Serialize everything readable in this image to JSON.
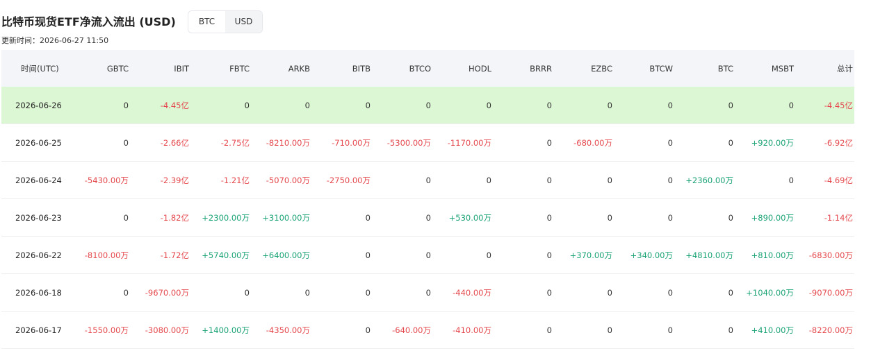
{
  "header": {
    "title": "比特币现货ETF净流入流出 (USD)",
    "toggle": [
      "BTC",
      "USD"
    ],
    "updated": "更新时间：2026-06-27 11:50"
  },
  "table": {
    "columns": [
      "时间(UTC)",
      "GBTC",
      "IBIT",
      "FBTC",
      "ARKB",
      "BITB",
      "BTCO",
      "HODL",
      "BRRR",
      "EZBC",
      "BTCW",
      "BTC",
      "MSBT",
      "总计"
    ],
    "rows": [
      [
        "2026-06-26",
        "0",
        "-4.45亿",
        "0",
        "0",
        "0",
        "0",
        "0",
        "0",
        "0",
        "0",
        "0",
        "0",
        "-4.45亿"
      ],
      [
        "2026-06-25",
        "0",
        "-2.66亿",
        "-2.75亿",
        "-8210.00万",
        "-710.00万",
        "-5300.00万",
        "-1170.00万",
        "0",
        "-680.00万",
        "0",
        "0",
        "+920.00万",
        "-6.92亿"
      ],
      [
        "2026-06-24",
        "-5430.00万",
        "-2.39亿",
        "-1.21亿",
        "-5070.00万",
        "-2750.00万",
        "0",
        "0",
        "0",
        "0",
        "0",
        "+2360.00万",
        "0",
        "-4.69亿"
      ],
      [
        "2026-06-23",
        "0",
        "-1.82亿",
        "+2300.00万",
        "+3100.00万",
        "0",
        "0",
        "+530.00万",
        "0",
        "0",
        "0",
        "0",
        "+890.00万",
        "-1.14亿"
      ],
      [
        "2026-06-22",
        "-8100.00万",
        "-1.72亿",
        "+5740.00万",
        "+6400.00万",
        "0",
        "0",
        "0",
        "0",
        "+370.00万",
        "+340.00万",
        "+4810.00万",
        "+810.00万",
        "-6830.00万"
      ],
      [
        "2026-06-18",
        "0",
        "-9670.00万",
        "0",
        "0",
        "0",
        "0",
        "-440.00万",
        "0",
        "0",
        "0",
        "0",
        "+1040.00万",
        "-9070.00万"
      ],
      [
        "2026-06-17",
        "-1550.00万",
        "-3080.00万",
        "+1400.00万",
        "-4350.00万",
        "0",
        "-640.00万",
        "-410.00万",
        "0",
        "0",
        "0",
        "0",
        "+410.00万",
        "-8220.00万"
      ]
    ]
  }
}
